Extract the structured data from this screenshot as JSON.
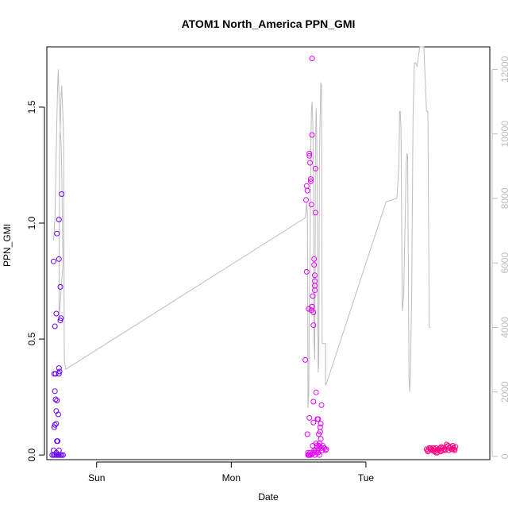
{
  "chart_data": {
    "type": "scatter",
    "title": "ATOM1 North_America PPN_GMI",
    "xlabel": "Date",
    "ylabel": "PPN_GMI",
    "x_ticks": [
      "Sun",
      "Mon",
      "Tue"
    ],
    "x_tick_values": [
      0,
      1,
      2
    ],
    "xlim": [
      -0.37,
      2.92
    ],
    "ylim": [
      -0.02,
      1.76
    ],
    "y_ticks": [
      0.0,
      0.5,
      1.0,
      1.5
    ],
    "y_tick_labels": [
      "0.0",
      "0.5",
      "1.0",
      "1.5"
    ],
    "y2lim": [
      -100,
      12700
    ],
    "y2_ticks": [
      0,
      2000,
      4000,
      6000,
      8000,
      10000,
      12000
    ],
    "y2_tick_labels": [
      "0",
      "2000",
      "4000",
      "6000",
      "8000",
      "10000",
      "12000"
    ],
    "colors": {
      "series_early": "#6a00ff",
      "series_mid": "#e600ff",
      "series_late": "#ff0080",
      "line": "#bdbdbd",
      "frame": "#000000"
    },
    "scatter_series": [
      {
        "color": "#6a00ff",
        "points": [
          [
            -0.32,
            0.835
          ],
          [
            -0.31,
            0.555
          ],
          [
            -0.315,
            0.35
          ],
          [
            -0.305,
            0.35
          ],
          [
            -0.31,
            0.275
          ],
          [
            -0.3,
            0.19
          ],
          [
            -0.31,
            0.13
          ],
          [
            -0.3,
            0.135
          ],
          [
            -0.315,
            0.12
          ],
          [
            -0.295,
            0.235
          ],
          [
            -0.305,
            0.24
          ],
          [
            -0.33,
            0.0
          ],
          [
            -0.32,
            0.0
          ],
          [
            -0.31,
            0.0
          ],
          [
            -0.3,
            0.0
          ],
          [
            -0.29,
            0.0
          ],
          [
            -0.28,
            0.0
          ],
          [
            -0.27,
            0.0
          ],
          [
            -0.26,
            0.0
          ],
          [
            -0.25,
            0.0
          ],
          [
            -0.32,
            0.02
          ],
          [
            -0.3,
            0.01
          ],
          [
            -0.28,
            0.02
          ],
          [
            -0.3,
            0.61
          ],
          [
            -0.295,
            0.955
          ],
          [
            -0.285,
            0.175
          ],
          [
            -0.28,
            1.015
          ],
          [
            -0.28,
            0.845
          ],
          [
            -0.28,
            0.375
          ],
          [
            -0.28,
            0.35
          ],
          [
            -0.275,
            0.36
          ],
          [
            -0.27,
            0.58
          ],
          [
            -0.265,
            0.59
          ],
          [
            -0.27,
            0.725
          ],
          [
            -0.26,
            1.125
          ],
          [
            -0.295,
            0.06
          ],
          [
            -0.29,
            0.06
          ]
        ]
      },
      {
        "color": "#e600ff",
        "points": [
          [
            1.55,
            0.41
          ],
          [
            1.555,
            1.1
          ],
          [
            1.56,
            1.16
          ],
          [
            1.56,
            0.79
          ],
          [
            1.565,
            1.14
          ],
          [
            1.565,
            0.09
          ],
          [
            1.57,
            0.01
          ],
          [
            1.57,
            0.0
          ],
          [
            1.575,
            0.0
          ],
          [
            1.58,
            1.29
          ],
          [
            1.58,
            1.3
          ],
          [
            1.575,
            0.63
          ],
          [
            1.58,
            0.16
          ],
          [
            1.585,
            1.26
          ],
          [
            1.59,
            1.19
          ],
          [
            1.59,
            1.18
          ],
          [
            1.595,
            1.08
          ],
          [
            1.595,
            0.625
          ],
          [
            1.6,
            0.64
          ],
          [
            1.6,
            0.64
          ],
          [
            1.605,
            0.685
          ],
          [
            1.61,
            0.615
          ],
          [
            1.61,
            0.56
          ],
          [
            1.61,
            0.23
          ],
          [
            1.61,
            0.14
          ],
          [
            1.6,
            1.38
          ],
          [
            1.6,
            1.71
          ],
          [
            1.615,
            0.845
          ],
          [
            1.615,
            0.82
          ],
          [
            1.62,
            0.75
          ],
          [
            1.62,
            0.775
          ],
          [
            1.62,
            0.73
          ],
          [
            1.62,
            0.71
          ],
          [
            1.625,
            1.235
          ],
          [
            1.625,
            1.045
          ],
          [
            1.63,
            0.27
          ],
          [
            1.605,
            0.04
          ],
          [
            1.61,
            0.01
          ],
          [
            1.615,
            0.02
          ],
          [
            1.62,
            0.0
          ],
          [
            1.625,
            0.02
          ],
          [
            1.63,
            0.05
          ],
          [
            1.635,
            0.04
          ],
          [
            1.64,
            0.02
          ],
          [
            1.64,
            0.155
          ],
          [
            1.645,
            0.155
          ],
          [
            1.65,
            0.09
          ],
          [
            1.65,
            0.04
          ],
          [
            1.655,
            0.05
          ],
          [
            1.66,
            0.1
          ],
          [
            1.66,
            0.12
          ],
          [
            1.665,
            0.135
          ],
          [
            1.67,
            0.215
          ],
          [
            1.665,
            0.07
          ],
          [
            1.66,
            0.035
          ],
          [
            1.67,
            0.03
          ],
          [
            1.675,
            0.02
          ],
          [
            1.68,
            0.04
          ],
          [
            1.69,
            0.03
          ],
          [
            1.7,
            0.02
          ],
          [
            1.705,
            0.025
          ],
          [
            1.645,
            0.01
          ],
          [
            1.635,
            0.01
          ],
          [
            1.655,
            0.0
          ],
          [
            1.59,
            0.0
          ],
          [
            1.58,
            0.0
          ],
          [
            1.585,
            0.01
          ],
          [
            1.6,
            0.005
          ]
        ]
      },
      {
        "color": "#ff0080",
        "points": [
          [
            2.45,
            0.025
          ],
          [
            2.46,
            0.02
          ],
          [
            2.47,
            0.03
          ],
          [
            2.48,
            0.025
          ],
          [
            2.49,
            0.02
          ],
          [
            2.5,
            0.03
          ],
          [
            2.51,
            0.015
          ],
          [
            2.52,
            0.01
          ],
          [
            2.53,
            0.02
          ],
          [
            2.54,
            0.025
          ],
          [
            2.55,
            0.03
          ],
          [
            2.56,
            0.02
          ],
          [
            2.57,
            0.03
          ],
          [
            2.58,
            0.025
          ],
          [
            2.59,
            0.02
          ],
          [
            2.6,
            0.045
          ],
          [
            2.61,
            0.04
          ],
          [
            2.62,
            0.03
          ],
          [
            2.63,
            0.035
          ],
          [
            2.64,
            0.025
          ],
          [
            2.65,
            0.03
          ],
          [
            2.66,
            0.02
          ],
          [
            2.665,
            0.035
          ],
          [
            2.46,
            0.015
          ],
          [
            2.48,
            0.03
          ],
          [
            2.51,
            0.025
          ],
          [
            2.53,
            0.01
          ],
          [
            2.555,
            0.015
          ],
          [
            2.575,
            0.02
          ],
          [
            2.595,
            0.035
          ],
          [
            2.615,
            0.02
          ],
          [
            2.635,
            0.025
          ],
          [
            2.645,
            0.04
          ],
          [
            2.655,
            0.025
          ],
          [
            2.5,
            0.02
          ],
          [
            2.52,
            0.03
          ],
          [
            2.56,
            0.035
          ]
        ]
      }
    ],
    "line_series": {
      "axis": "right",
      "points": [
        [
          -0.32,
          6700
        ],
        [
          -0.31,
          7400
        ],
        [
          -0.3,
          9500
        ],
        [
          -0.295,
          10500
        ],
        [
          -0.29,
          11500
        ],
        [
          -0.285,
          12000
        ],
        [
          -0.28,
          11200
        ],
        [
          -0.275,
          10800
        ],
        [
          -0.27,
          10000
        ],
        [
          -0.265,
          9800
        ],
        [
          -0.26,
          9000
        ],
        [
          -0.255,
          7400
        ],
        [
          -0.25,
          6000
        ],
        [
          -0.28,
          4200
        ],
        [
          -0.275,
          9800
        ],
        [
          -0.27,
          10200
        ],
        [
          -0.265,
          11100
        ],
        [
          -0.26,
          11500
        ],
        [
          -0.255,
          11000
        ],
        [
          -0.25,
          10500
        ],
        [
          -0.245,
          9600
        ],
        [
          -0.24,
          3000
        ],
        [
          -0.23,
          2700
        ],
        [
          1.55,
          7400
        ],
        [
          1.555,
          7600
        ],
        [
          1.56,
          7900
        ],
        [
          1.565,
          7500
        ],
        [
          1.57,
          1500
        ],
        [
          1.575,
          1900
        ],
        [
          1.58,
          5000
        ],
        [
          1.585,
          6000
        ],
        [
          1.59,
          9400
        ],
        [
          1.595,
          10700
        ],
        [
          1.6,
          11000
        ],
        [
          1.605,
          10300
        ],
        [
          1.61,
          9000
        ],
        [
          1.615,
          3500
        ],
        [
          1.62,
          3000
        ],
        [
          1.625,
          9500
        ],
        [
          1.63,
          10800
        ],
        [
          1.635,
          9800
        ],
        [
          1.64,
          7000
        ],
        [
          1.645,
          2600
        ],
        [
          1.65,
          2900
        ],
        [
          1.655,
          9400
        ],
        [
          1.66,
          10600
        ],
        [
          1.665,
          11600
        ],
        [
          1.67,
          11500
        ],
        [
          1.675,
          3500
        ],
        [
          1.68,
          3500
        ],
        [
          1.685,
          3500
        ],
        [
          1.69,
          3500
        ],
        [
          1.7,
          3500
        ],
        [
          1.7,
          2200
        ],
        [
          1.71,
          2300
        ],
        [
          2.15,
          7900
        ],
        [
          2.23,
          8000
        ],
        [
          2.245,
          9000
        ],
        [
          2.25,
          10700
        ],
        [
          2.255,
          10700
        ],
        [
          2.26,
          10200
        ],
        [
          2.265,
          7500
        ],
        [
          2.27,
          4500
        ],
        [
          2.28,
          5000
        ],
        [
          2.29,
          7000
        ],
        [
          2.3,
          9100
        ],
        [
          2.305,
          9400
        ],
        [
          2.31,
          9300
        ],
        [
          2.32,
          2500
        ],
        [
          2.325,
          2000
        ],
        [
          2.33,
          2500
        ],
        [
          2.34,
          5000
        ],
        [
          2.35,
          10500
        ],
        [
          2.36,
          12200
        ],
        [
          2.37,
          12200
        ],
        [
          2.38,
          12100
        ],
        [
          2.39,
          12400
        ],
        [
          2.4,
          12700
        ],
        [
          2.42,
          12700
        ],
        [
          2.43,
          12700
        ],
        [
          2.44,
          11700
        ],
        [
          2.45,
          10700
        ],
        [
          2.46,
          10700
        ],
        [
          2.47,
          4000
        ],
        [
          2.48,
          4000
        ]
      ]
    }
  }
}
